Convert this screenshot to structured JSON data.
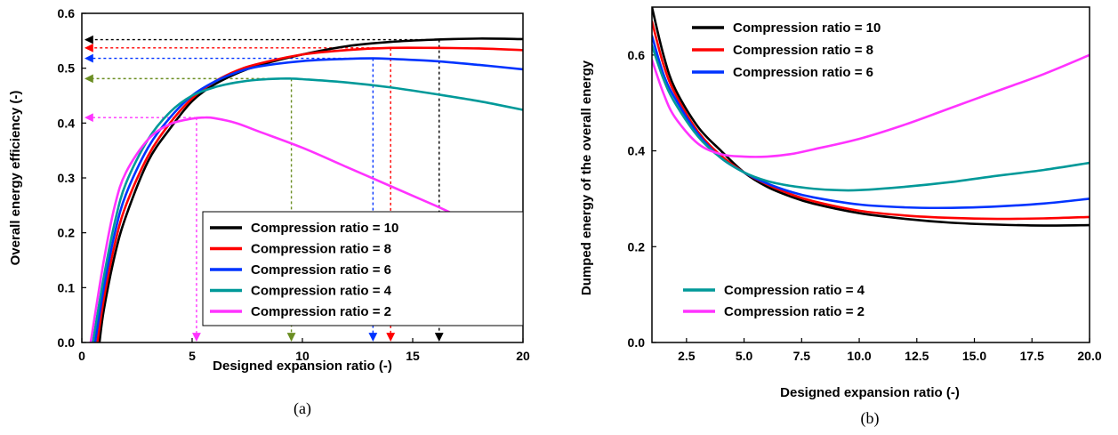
{
  "chart_data": [
    {
      "type": "line",
      "caption": "(a)",
      "xlabel": "Designed expansion ratio (-)",
      "ylabel": "Overall energy efficiency (-)",
      "xlim": [
        0,
        20
      ],
      "ylim": [
        0,
        0.6
      ],
      "xticks": [
        0,
        5,
        10,
        15,
        20
      ],
      "yticks": [
        0.0,
        0.1,
        0.2,
        0.3,
        0.4,
        0.5,
        0.6
      ],
      "xtick_labels": [
        "0",
        "5",
        "10",
        "15",
        "20"
      ],
      "ytick_labels": [
        "0.0",
        "0.1",
        "0.2",
        "0.3",
        "0.4",
        "0.5",
        "0.6"
      ],
      "legend": "bottom-right, boxed",
      "series": [
        {
          "name": "Compression ratio = 10",
          "color": "#000000",
          "x": [
            0.8,
            1,
            1.5,
            2,
            3,
            4,
            5,
            6,
            7,
            8,
            10,
            12,
            14,
            16,
            18,
            20
          ],
          "y": [
            0.0,
            0.06,
            0.16,
            0.23,
            0.33,
            0.39,
            0.44,
            0.47,
            0.49,
            0.505,
            0.525,
            0.54,
            0.548,
            0.552,
            0.554,
            0.553
          ]
        },
        {
          "name": "Compression ratio = 8",
          "color": "#ff0000",
          "x": [
            0.7,
            1,
            1.5,
            2,
            3,
            4,
            5,
            6,
            7,
            8,
            10,
            12,
            14,
            16,
            18,
            20
          ],
          "y": [
            0.0,
            0.08,
            0.18,
            0.25,
            0.34,
            0.4,
            0.445,
            0.475,
            0.495,
            0.508,
            0.525,
            0.533,
            0.537,
            0.537,
            0.536,
            0.533
          ]
        },
        {
          "name": "Compression ratio = 6",
          "color": "#0033ff",
          "x": [
            0.6,
            1,
            1.5,
            2,
            3,
            4,
            5,
            6,
            7,
            8,
            10,
            12,
            13.2,
            14,
            16,
            18,
            20
          ],
          "y": [
            0.0,
            0.1,
            0.2,
            0.27,
            0.355,
            0.41,
            0.45,
            0.475,
            0.492,
            0.503,
            0.513,
            0.517,
            0.518,
            0.517,
            0.513,
            0.506,
            0.498
          ]
        },
        {
          "name": "Compression ratio = 4",
          "color": "#009999",
          "x": [
            0.5,
            1,
            1.5,
            2,
            3,
            4,
            5,
            6,
            7,
            8,
            9,
            9.5,
            10,
            12,
            14,
            16,
            18,
            20
          ],
          "y": [
            0.0,
            0.12,
            0.22,
            0.29,
            0.37,
            0.42,
            0.45,
            0.465,
            0.474,
            0.479,
            0.481,
            0.481,
            0.48,
            0.474,
            0.465,
            0.453,
            0.44,
            0.424
          ]
        },
        {
          "name": "Compression ratio = 2",
          "color": "#ff33ff",
          "x": [
            0.4,
            1,
            1.5,
            2,
            3,
            4,
            5,
            5.5,
            6,
            7,
            8,
            10,
            12,
            14,
            16,
            18,
            20
          ],
          "y": [
            0.0,
            0.15,
            0.25,
            0.31,
            0.37,
            0.398,
            0.408,
            0.41,
            0.409,
            0.4,
            0.385,
            0.355,
            0.32,
            0.285,
            0.25,
            0.215,
            0.2
          ]
        }
      ],
      "annotations": [
        {
          "color": "#000000",
          "x": 16.2,
          "y": 0.552
        },
        {
          "color": "#ff0000",
          "x": 14.0,
          "y": 0.537
        },
        {
          "color": "#0033ff",
          "x": 13.2,
          "y": 0.518
        },
        {
          "color": "#6b8e23",
          "x": 9.5,
          "y": 0.481
        },
        {
          "color": "#ff33ff",
          "x": 5.2,
          "y": 0.41
        }
      ]
    },
    {
      "type": "line",
      "caption": "(b)",
      "xlabel": "Designed expansion ratio (-)",
      "ylabel": "Dumped energy of the overall energy",
      "xlim": [
        1,
        20
      ],
      "ylim": [
        0,
        0.7
      ],
      "xticks": [
        2.5,
        5.0,
        7.5,
        10.0,
        12.5,
        15.0,
        17.5,
        20.0
      ],
      "yticks": [
        0.0,
        0.2,
        0.4,
        0.6
      ],
      "xtick_labels": [
        "2.5",
        "5.0",
        "7.5",
        "10.0",
        "12.5",
        "15.0",
        "17.5",
        "20.0"
      ],
      "ytick_labels": [
        "0.0",
        "0.2",
        "0.4",
        "0.6"
      ],
      "legend": "top-left and bottom-left, unboxed",
      "series": [
        {
          "name": "Compression ratio = 10",
          "color": "#000000",
          "x": [
            1,
            1.5,
            2,
            3,
            4,
            5,
            6,
            7,
            8,
            10,
            12,
            14,
            16,
            18,
            20
          ],
          "y": [
            0.7,
            0.6,
            0.53,
            0.45,
            0.4,
            0.355,
            0.325,
            0.305,
            0.29,
            0.27,
            0.258,
            0.25,
            0.246,
            0.244,
            0.245
          ]
        },
        {
          "name": "Compression ratio = 8",
          "color": "#ff0000",
          "x": [
            1,
            1.5,
            2,
            3,
            4,
            5,
            6,
            7,
            8,
            10,
            12,
            14,
            16,
            18,
            20
          ],
          "y": [
            0.67,
            0.58,
            0.52,
            0.44,
            0.39,
            0.355,
            0.33,
            0.31,
            0.295,
            0.275,
            0.265,
            0.26,
            0.258,
            0.259,
            0.262
          ]
        },
        {
          "name": "Compression ratio = 6",
          "color": "#0033ff",
          "x": [
            1,
            1.5,
            2,
            3,
            4,
            5,
            6,
            7,
            8,
            10,
            12,
            14,
            16,
            18,
            20
          ],
          "y": [
            0.64,
            0.56,
            0.51,
            0.435,
            0.385,
            0.355,
            0.332,
            0.315,
            0.303,
            0.288,
            0.282,
            0.281,
            0.284,
            0.29,
            0.3
          ]
        },
        {
          "name": "Compression ratio = 4",
          "color": "#009999",
          "x": [
            1,
            1.5,
            2,
            3,
            4,
            5,
            6,
            7,
            8,
            9,
            10,
            12,
            14,
            16,
            18,
            20
          ],
          "y": [
            0.62,
            0.55,
            0.5,
            0.43,
            0.385,
            0.355,
            0.337,
            0.327,
            0.321,
            0.318,
            0.318,
            0.325,
            0.335,
            0.348,
            0.36,
            0.375
          ]
        },
        {
          "name": "Compression ratio = 2",
          "color": "#ff33ff",
          "x": [
            1,
            1.5,
            2,
            3,
            4,
            5,
            6,
            7,
            8,
            10,
            12,
            14,
            16,
            18,
            20
          ],
          "y": [
            0.59,
            0.52,
            0.47,
            0.415,
            0.393,
            0.388,
            0.388,
            0.393,
            0.403,
            0.425,
            0.455,
            0.49,
            0.525,
            0.56,
            0.6
          ]
        }
      ]
    }
  ]
}
